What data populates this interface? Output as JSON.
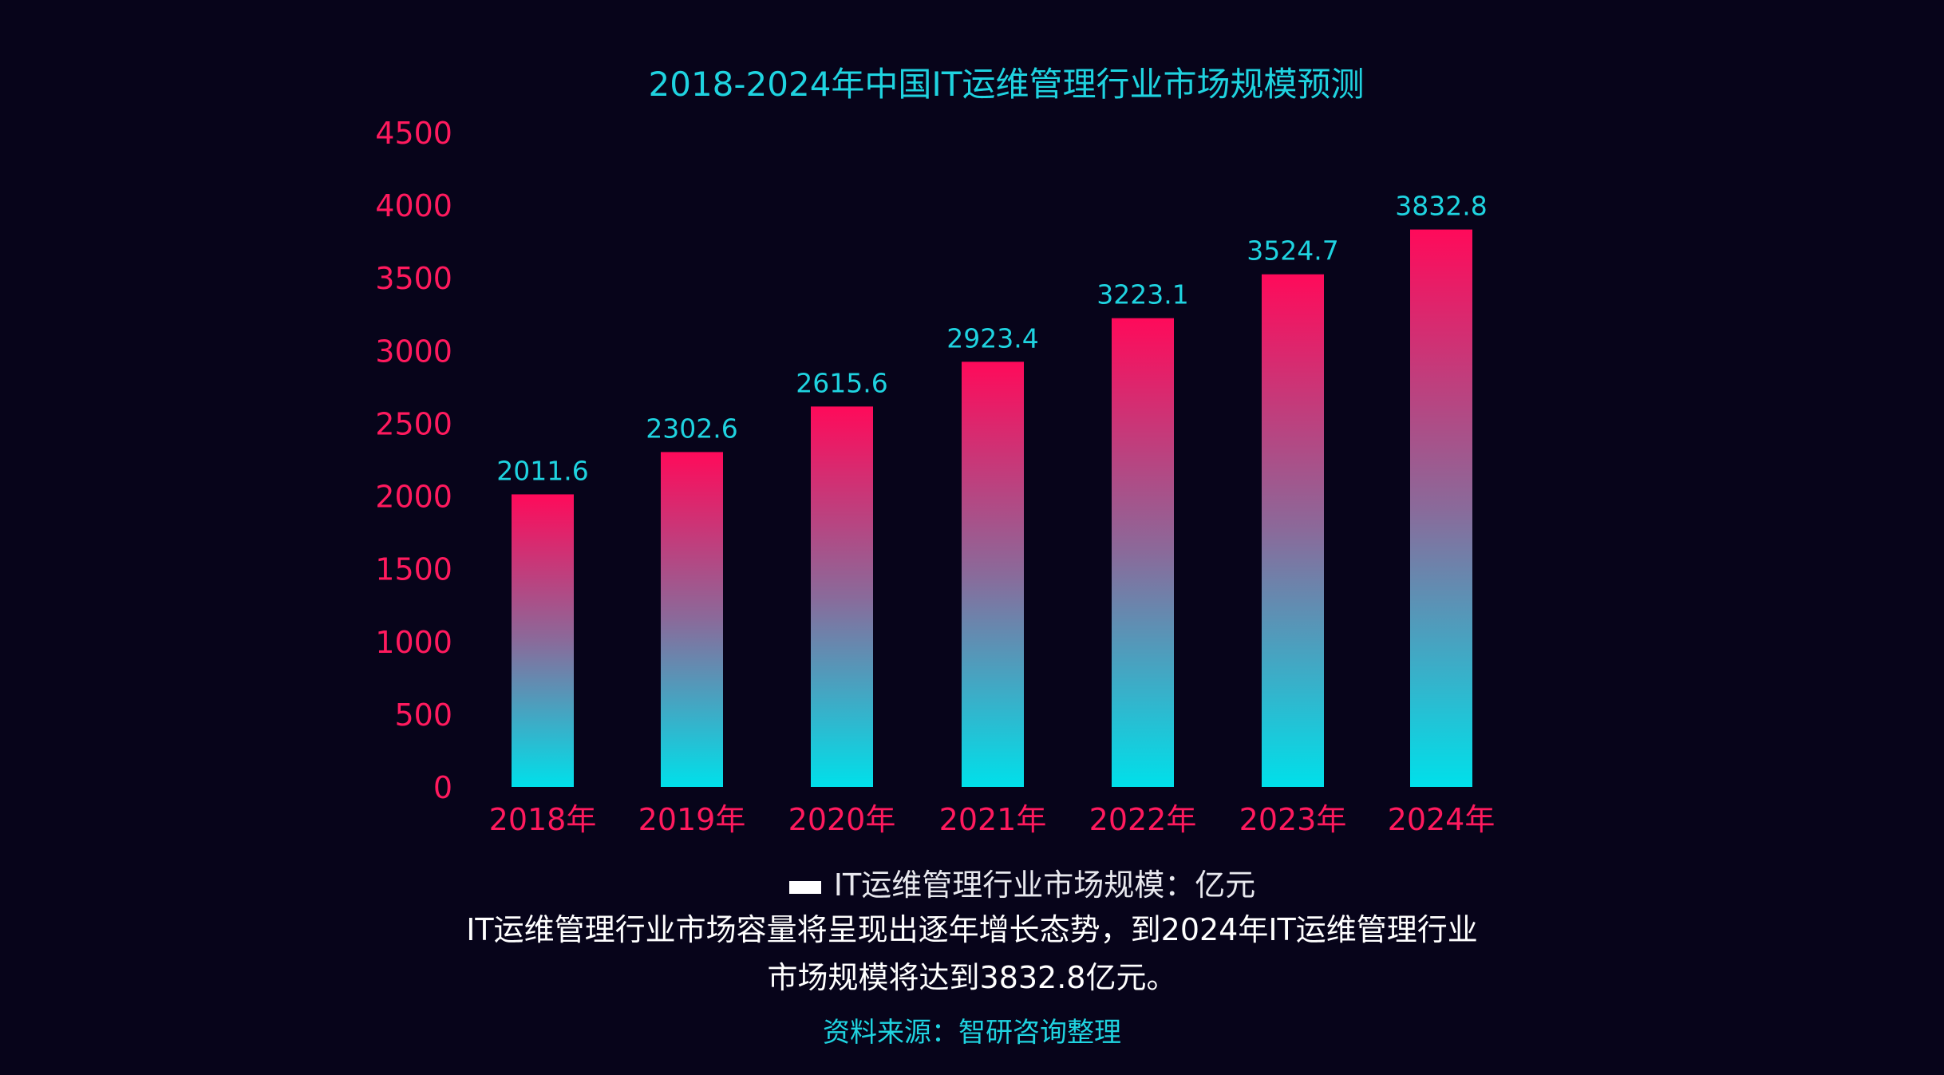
{
  "chart_data": {
    "type": "bar",
    "title": "2018-2024年中国IT运维管理行业市场规模预测",
    "categories": [
      "2018年",
      "2019年",
      "2020年",
      "2021年",
      "2022年",
      "2023年",
      "2024年"
    ],
    "values": [
      2011.6,
      2302.6,
      2615.6,
      2923.4,
      3223.1,
      3524.7,
      3832.8
    ],
    "data_labels": [
      "2011.6",
      "2302.6",
      "2615.6",
      "2923.4",
      "3223.1",
      "3524.7",
      "3832.8"
    ],
    "yticks": [
      "0",
      "500",
      "1000",
      "1500",
      "2000",
      "2500",
      "3000",
      "3500",
      "4000",
      "4500"
    ],
    "ylim": [
      0,
      4500
    ],
    "grid": true,
    "legend": {
      "position": "bottom",
      "label": "IT运维管理行业市场规模：亿元"
    },
    "colors": {
      "bar_top": "#ff0a5a",
      "bar_bottom": "#00e0ea",
      "tick_label": "#ff1a5e",
      "data_label": "#1fd3e0",
      "title": "#1fd3e0",
      "background": "#07041a"
    }
  },
  "description": {
    "line1": "IT运维管理行业市场容量将呈现出逐年增长态势，到2024年IT运维管理行业",
    "line2": "市场规模将达到3832.8亿元。"
  },
  "source": "资料来源：智研咨询整理"
}
